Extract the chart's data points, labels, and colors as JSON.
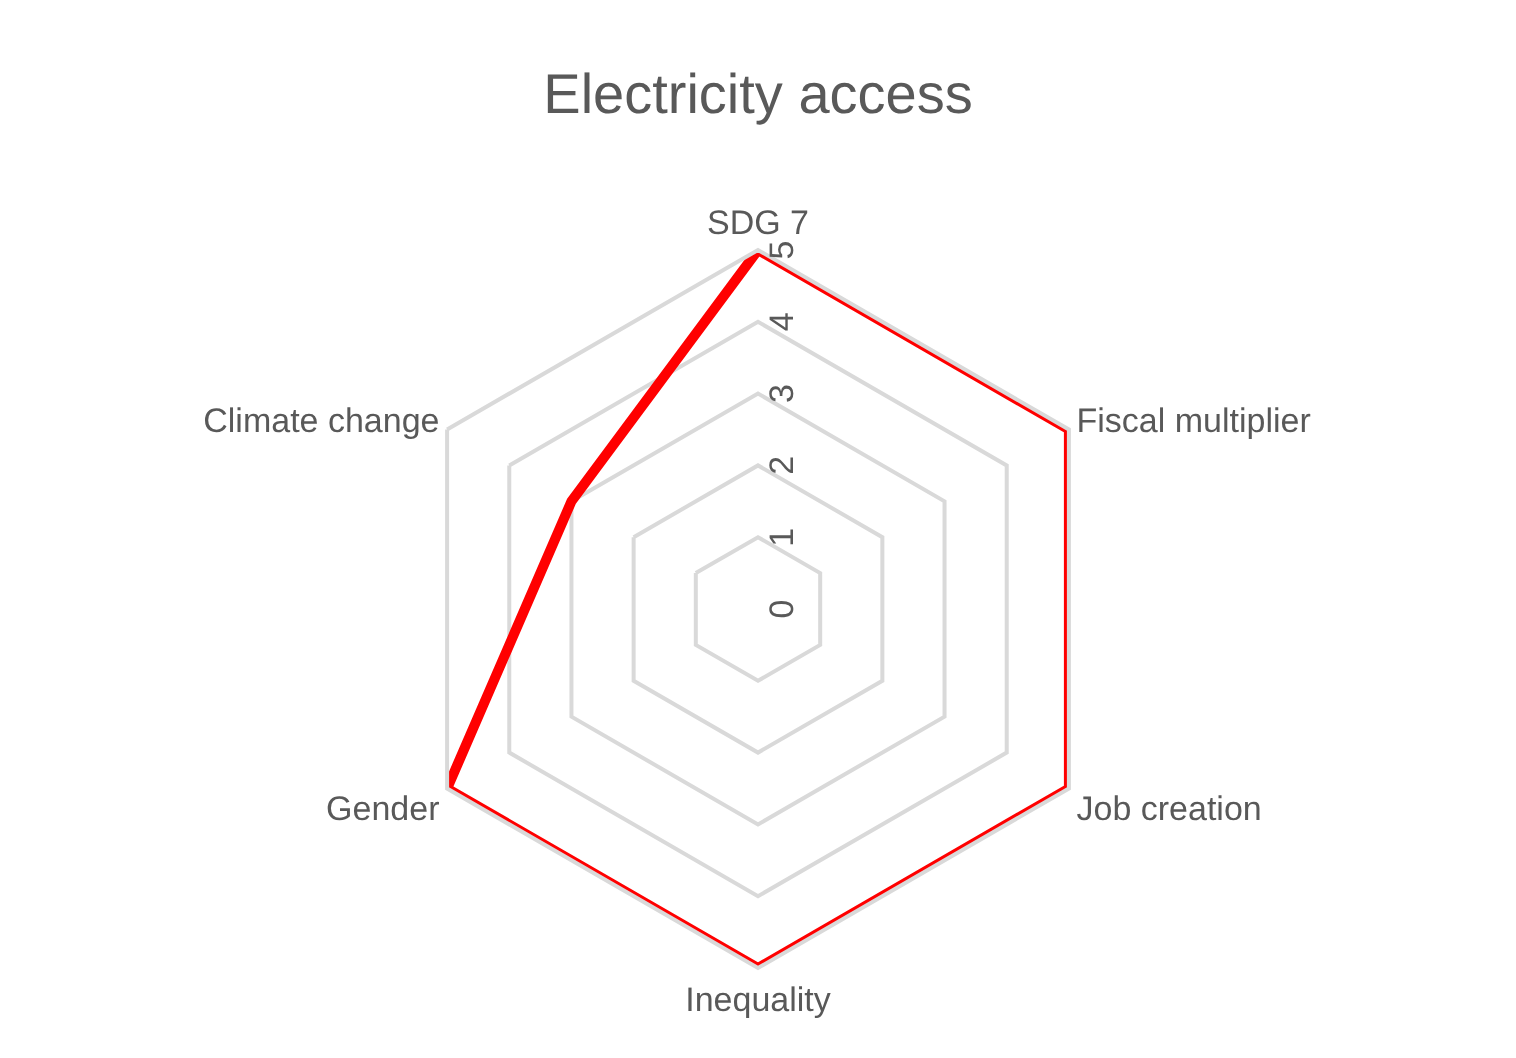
{
  "chart_data": {
    "type": "radar",
    "title": "Electricity access",
    "categories": [
      "SDG 7",
      "Fiscal multiplier",
      "Job creation",
      "Inequality",
      "Gender",
      "Climate change"
    ],
    "series": [
      {
        "color": "#ff0000",
        "values": [
          5,
          5,
          5,
          5,
          5,
          3
        ]
      }
    ],
    "ylim": [
      0,
      5
    ],
    "yticks": [
      0,
      1,
      2,
      3,
      4,
      5
    ],
    "grid": true
  }
}
